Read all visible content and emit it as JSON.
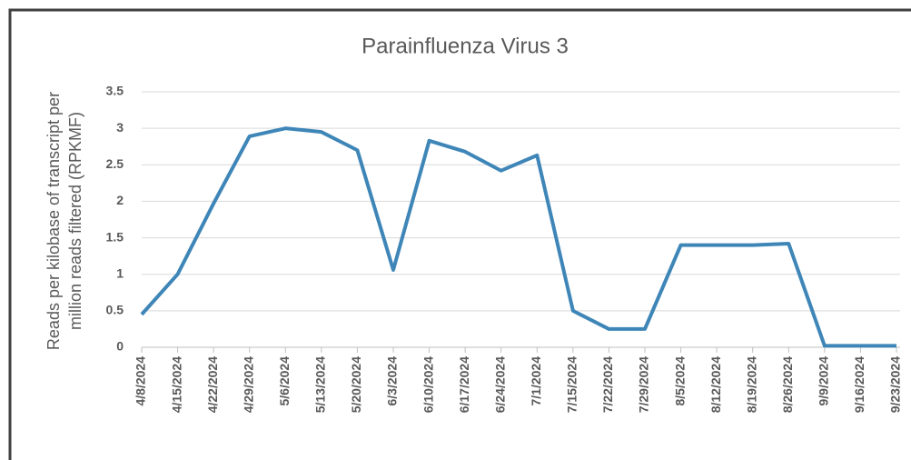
{
  "chart_data": {
    "type": "line",
    "title": "Parainfluenza Virus 3",
    "y_label": [
      "Reads per kilobase of transcript per",
      "million reads filtered (RPKMF)"
    ],
    "categories": [
      "4/8/2024",
      "4/15/2024",
      "4/22/2024",
      "4/29/2024",
      "5/6/2024",
      "5/13/2024",
      "5/20/2024",
      "6/3/2024",
      "6/10/2024",
      "6/17/2024",
      "6/24/2024",
      "7/1/2024",
      "7/15/2024",
      "7/22/2024",
      "7/29/2024",
      "8/5/2024",
      "8/12/2024",
      "8/19/2024",
      "8/26/2024",
      "9/9/2024",
      "9/16/2024",
      "9/23/2024"
    ],
    "series": [
      {
        "color": "#3f86b8",
        "values": [
          0.45,
          1.0,
          1.97,
          2.89,
          3.0,
          2.95,
          2.7,
          1.06,
          2.83,
          2.68,
          2.42,
          2.63,
          0.5,
          0.25,
          0.25,
          1.4,
          1.4,
          1.4,
          1.42,
          0.02,
          0.02,
          0.02
        ]
      }
    ],
    "ylim": [
      0,
      3.5
    ],
    "yticks": [
      0,
      0.5,
      1,
      1.5,
      2,
      2.5,
      3,
      3.5
    ],
    "grid": true
  }
}
